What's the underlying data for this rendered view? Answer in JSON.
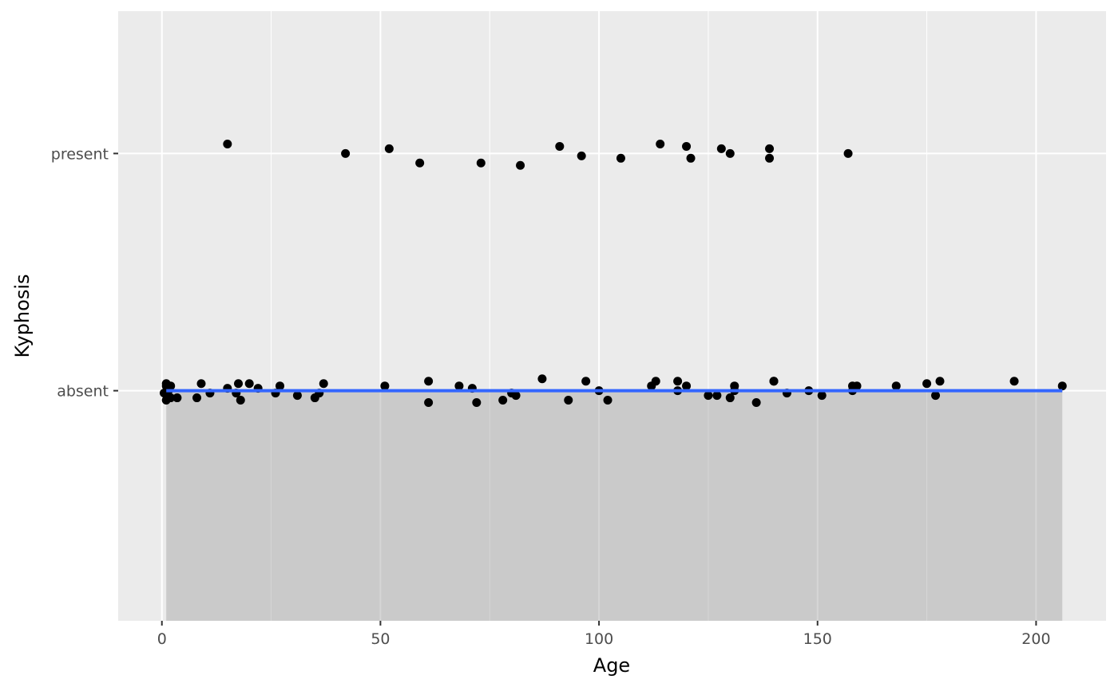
{
  "chart_data": {
    "type": "scatter",
    "xlabel": "Age",
    "ylabel": "Kyphosis",
    "xlim": [
      -10,
      216
    ],
    "ylim": [
      -0.97,
      1.6
    ],
    "x_ticks": [
      0,
      50,
      100,
      150,
      200
    ],
    "x_tick_labels": [
      "0",
      "50",
      "100",
      "150",
      "200"
    ],
    "y_categories": [
      "absent",
      "present"
    ],
    "y_category_values": [
      0,
      1
    ],
    "grid": true,
    "legend": "none",
    "colors": {
      "panel": "#ebebeb",
      "grid": "#ffffff",
      "points": "#000000",
      "smooth_line": "#3366ff",
      "ribbon": "#999999"
    },
    "series": [
      {
        "points": [
          {
            "x": 0.5,
            "y": -0.01
          },
          {
            "x": 1,
            "y": 0.02
          },
          {
            "x": 1,
            "y": 0.03
          },
          {
            "x": 1,
            "y": -0.04
          },
          {
            "x": 1.5,
            "y": 0.01
          },
          {
            "x": 1.5,
            "y": 0.0
          },
          {
            "x": 2,
            "y": -0.03
          },
          {
            "x": 2,
            "y": 0.02
          },
          {
            "x": 3.5,
            "y": -0.03
          },
          {
            "x": 8,
            "y": -0.03
          },
          {
            "x": 9,
            "y": 0.03
          },
          {
            "x": 11,
            "y": -0.01
          },
          {
            "x": 15,
            "y": 0.01
          },
          {
            "x": 17,
            "y": -0.01
          },
          {
            "x": 17.5,
            "y": 0.03
          },
          {
            "x": 18,
            "y": -0.04
          },
          {
            "x": 20,
            "y": 0.03
          },
          {
            "x": 22,
            "y": 0.01
          },
          {
            "x": 26,
            "y": -0.01
          },
          {
            "x": 27,
            "y": 0.02
          },
          {
            "x": 31,
            "y": -0.02
          },
          {
            "x": 35,
            "y": -0.03
          },
          {
            "x": 36,
            "y": -0.01
          },
          {
            "x": 37,
            "y": 0.03
          },
          {
            "x": 51,
            "y": 0.02
          },
          {
            "x": 61,
            "y": 0.04
          },
          {
            "x": 61,
            "y": -0.05
          },
          {
            "x": 68,
            "y": 0.02
          },
          {
            "x": 71,
            "y": 0.01
          },
          {
            "x": 72,
            "y": -0.05
          },
          {
            "x": 78,
            "y": -0.04
          },
          {
            "x": 80,
            "y": -0.01
          },
          {
            "x": 81,
            "y": -0.02
          },
          {
            "x": 87,
            "y": 0.05
          },
          {
            "x": 93,
            "y": -0.04
          },
          {
            "x": 97,
            "y": 0.04
          },
          {
            "x": 100,
            "y": 0.0
          },
          {
            "x": 102,
            "y": -0.04
          },
          {
            "x": 112,
            "y": 0.02
          },
          {
            "x": 113,
            "y": 0.04
          },
          {
            "x": 118,
            "y": 0.0
          },
          {
            "x": 118,
            "y": 0.04
          },
          {
            "x": 120,
            "y": 0.02
          },
          {
            "x": 125,
            "y": -0.02
          },
          {
            "x": 127,
            "y": -0.02
          },
          {
            "x": 130,
            "y": -0.03
          },
          {
            "x": 131,
            "y": 0.02
          },
          {
            "x": 131,
            "y": 0.0
          },
          {
            "x": 136,
            "y": -0.05
          },
          {
            "x": 140,
            "y": 0.04
          },
          {
            "x": 140,
            "y": 0.04
          },
          {
            "x": 143,
            "y": -0.01
          },
          {
            "x": 148,
            "y": 0.0
          },
          {
            "x": 151,
            "y": -0.02
          },
          {
            "x": 158,
            "y": 0.0
          },
          {
            "x": 158,
            "y": 0.02
          },
          {
            "x": 159,
            "y": 0.02
          },
          {
            "x": 168,
            "y": 0.02
          },
          {
            "x": 175,
            "y": 0.03
          },
          {
            "x": 177,
            "y": -0.02
          },
          {
            "x": 178,
            "y": 0.04
          },
          {
            "x": 195,
            "y": 0.04
          },
          {
            "x": 206,
            "y": 0.02
          },
          {
            "x": 15,
            "y": 1.04
          },
          {
            "x": 42,
            "y": 1.0
          },
          {
            "x": 52,
            "y": 1.02
          },
          {
            "x": 59,
            "y": 0.96
          },
          {
            "x": 73,
            "y": 0.96
          },
          {
            "x": 82,
            "y": 0.95
          },
          {
            "x": 91,
            "y": 1.03
          },
          {
            "x": 96,
            "y": 0.99
          },
          {
            "x": 105,
            "y": 0.98
          },
          {
            "x": 114,
            "y": 1.04
          },
          {
            "x": 120,
            "y": 1.03
          },
          {
            "x": 121,
            "y": 0.98
          },
          {
            "x": 128,
            "y": 1.02
          },
          {
            "x": 130,
            "y": 1.0
          },
          {
            "x": 139,
            "y": 1.02
          },
          {
            "x": 139,
            "y": 0.98
          },
          {
            "x": 157,
            "y": 1.0
          }
        ]
      }
    ],
    "smooth": {
      "method": "lm",
      "x_range": [
        1,
        206
      ],
      "fitted": [
        0,
        0
      ],
      "ribbon_lower": [
        -0.97,
        -0.97
      ],
      "ribbon_upper": [
        0,
        0
      ]
    }
  }
}
